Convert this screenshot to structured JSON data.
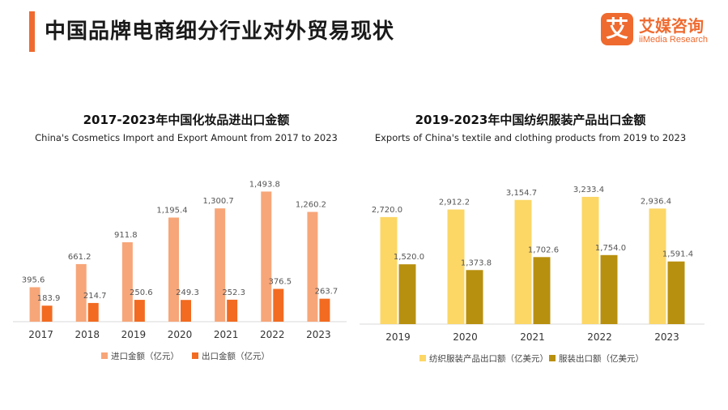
{
  "header": {
    "title": "中国品牌电商细分行业对外贸易现状",
    "logo_mark": "艾",
    "logo_cn": "艾媒咨询",
    "logo_en": "iiMedia Research"
  },
  "colors": {
    "accent": "#ef6a2f",
    "cosmetics_import": "#f7a679",
    "cosmetics_export": "#f26b21",
    "textile_total": "#fcd766",
    "textile_clothing": "#b8900f"
  },
  "chart_data": [
    {
      "type": "bar",
      "title": "2017-2023年中国化妆品进出口金额",
      "subtitle": "China's Cosmetics Import and Export Amount from 2017 to 2023",
      "categories": [
        "2017",
        "2018",
        "2019",
        "2020",
        "2021",
        "2022",
        "2023"
      ],
      "series": [
        {
          "name": "进口金额（亿元）",
          "values": [
            395.6,
            661.2,
            911.8,
            1195.4,
            1300.7,
            1493.8,
            1260.2
          ],
          "labels": [
            "395.6",
            "661.2",
            "911.8",
            "1,195.4",
            "1,300.7",
            "1,493.8",
            "1,260.2"
          ]
        },
        {
          "name": "出口金额（亿元）",
          "values": [
            183.9,
            214.7,
            250.6,
            249.3,
            252.3,
            376.5,
            263.7
          ],
          "labels": [
            "183.9",
            "214.7",
            "250.6",
            "249.3",
            "252.3",
            "376.5",
            "263.7"
          ]
        }
      ],
      "ylim": [
        0,
        1600
      ],
      "grid": false,
      "legend": "bottom"
    },
    {
      "type": "bar",
      "title": "2019-2023年中国纺织服装产品出口金额",
      "subtitle": "Exports of China's textile and clothing products from 2019 to 2023",
      "categories": [
        "2019",
        "2020",
        "2021",
        "2022",
        "2023"
      ],
      "series": [
        {
          "name": "纺织服装产品出口额（亿美元）",
          "values": [
            2720.0,
            2912.2,
            3154.7,
            3233.4,
            2936.4
          ],
          "labels": [
            "2,720.0",
            "2,912.2",
            "3,154.7",
            "3,233.4",
            "2,936.4"
          ]
        },
        {
          "name": "服装出口额（亿美元）",
          "values": [
            1520.0,
            1373.8,
            1702.6,
            1754.0,
            1591.4
          ],
          "labels": [
            "1,520.0",
            "1,373.8",
            "1,702.6",
            "1,754.0",
            "1,591.4"
          ]
        }
      ],
      "ylim": [
        0,
        3500
      ],
      "grid": false,
      "legend": "bottom"
    }
  ]
}
